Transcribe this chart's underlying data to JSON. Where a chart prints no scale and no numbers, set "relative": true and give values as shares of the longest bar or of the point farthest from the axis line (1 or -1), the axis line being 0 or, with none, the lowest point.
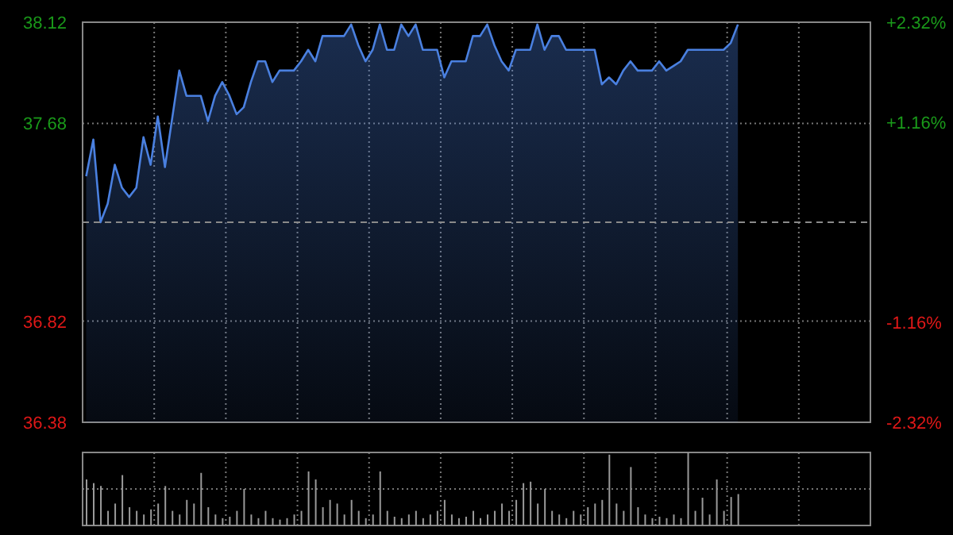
{
  "chart_data": [
    {
      "type": "area",
      "categories": [
        null,
        null,
        null,
        null,
        null,
        null,
        null,
        null,
        null,
        null,
        null,
        null,
        null,
        null,
        null,
        null,
        null,
        null,
        null,
        null,
        null,
        null,
        null,
        null,
        null,
        null,
        null,
        null,
        null,
        null,
        null,
        null,
        null,
        null,
        null,
        null,
        null,
        null,
        null,
        null,
        null,
        null,
        null,
        null,
        null,
        null,
        null,
        null,
        null,
        null,
        null,
        null,
        null,
        null,
        null,
        null,
        null,
        null,
        null,
        null,
        null,
        null,
        null,
        null,
        null,
        null,
        null,
        null,
        null,
        null,
        null,
        null,
        null,
        null,
        null,
        null,
        null,
        null,
        null,
        null,
        null,
        null,
        null,
        null,
        null,
        null,
        null,
        null,
        null,
        null,
        null,
        null,
        null,
        null,
        null,
        null,
        null,
        null,
        null,
        null,
        null,
        null,
        null,
        null,
        null,
        null,
        null,
        null,
        null,
        null
      ],
      "series": [
        {
          "color": "#4a80e0",
          "values": [
            37.45,
            37.61,
            37.25,
            37.33,
            37.5,
            37.4,
            37.36,
            37.4,
            37.62,
            37.5,
            37.71,
            37.49,
            37.7,
            37.91,
            37.8,
            37.8,
            37.8,
            37.69,
            37.8,
            37.86,
            37.8,
            37.72,
            37.75,
            37.86,
            37.95,
            37.95,
            37.86,
            37.91,
            37.91,
            37.91,
            37.95,
            38.0,
            37.95,
            38.06,
            38.06,
            38.06,
            38.06,
            38.11,
            38.02,
            37.95,
            38.0,
            38.11,
            38.0,
            38.0,
            38.11,
            38.06,
            38.11,
            38.0,
            38.0,
            38.0,
            37.88,
            37.95,
            37.95,
            37.95,
            38.06,
            38.06,
            38.11,
            38.02,
            37.95,
            37.91,
            38.0,
            38.0,
            38.0,
            38.11,
            38.0,
            38.06,
            38.06,
            38.0,
            38.0,
            38.0,
            38.0,
            38.0,
            37.85,
            37.88,
            37.85,
            37.91,
            37.95,
            37.91,
            37.91,
            37.91,
            37.95,
            37.91,
            37.93,
            37.95,
            38.0,
            38.0,
            38.0,
            38.0,
            38.0,
            38.0,
            38.03,
            38.11,
            null,
            null,
            null,
            null,
            null,
            null,
            null,
            null,
            null,
            null,
            null,
            null,
            null,
            null,
            null,
            null,
            null,
            null
          ]
        }
      ],
      "ylim": [
        36.38,
        38.12
      ],
      "yticks": [
        36.38,
        36.82,
        37.68,
        38.12
      ],
      "y2lim": [
        -2.32,
        2.32
      ],
      "y2ticks": [
        {
          "value": -2.32,
          "label": "-2.32%"
        },
        {
          "value": -1.16,
          "label": "-1.16%"
        },
        {
          "value": 1.16,
          "label": "+1.16%"
        },
        {
          "value": 2.32,
          "label": "+2.32%"
        }
      ],
      "ref_lines": [
        {
          "axis": "y",
          "value": 37.25,
          "line_style": "dashed",
          "color": "#8a8a8a"
        }
      ],
      "grid": true,
      "tick_labels": "y",
      "legend": false
    },
    {
      "type": "bar",
      "relative": true,
      "grid": true,
      "tick_labels": false,
      "legend": false,
      "categories": [
        null,
        null,
        null,
        null,
        null,
        null,
        null,
        null,
        null,
        null,
        null,
        null,
        null,
        null,
        null,
        null,
        null,
        null,
        null,
        null,
        null,
        null,
        null,
        null,
        null,
        null,
        null,
        null,
        null,
        null,
        null,
        null,
        null,
        null,
        null,
        null,
        null,
        null,
        null,
        null,
        null,
        null,
        null,
        null,
        null,
        null,
        null,
        null,
        null,
        null,
        null,
        null,
        null,
        null,
        null,
        null,
        null,
        null,
        null,
        null,
        null,
        null,
        null,
        null,
        null,
        null,
        null,
        null,
        null,
        null,
        null,
        null,
        null,
        null,
        null,
        null,
        null,
        null,
        null,
        null,
        null,
        null,
        null,
        null,
        null,
        null,
        null,
        null,
        null,
        null,
        null,
        null,
        null,
        null,
        null,
        null,
        null,
        null,
        null,
        null,
        null,
        null,
        null,
        null,
        null,
        null,
        null,
        null,
        null,
        null
      ],
      "series": [
        {
          "color": "#9a9a9a",
          "values": [
            0.63,
            0.58,
            0.54,
            0.2,
            0.3,
            0.69,
            0.25,
            0.2,
            0.15,
            0.22,
            0.3,
            0.54,
            0.2,
            0.15,
            0.35,
            0.3,
            0.72,
            0.25,
            0.15,
            0.1,
            0.12,
            0.2,
            0.5,
            0.15,
            0.1,
            0.2,
            0.1,
            0.08,
            0.1,
            0.15,
            0.2,
            0.74,
            0.63,
            0.25,
            0.35,
            0.3,
            0.15,
            0.35,
            0.2,
            0.1,
            0.15,
            0.74,
            0.2,
            0.12,
            0.1,
            0.15,
            0.2,
            0.1,
            0.15,
            0.2,
            0.35,
            0.15,
            0.1,
            0.12,
            0.2,
            0.1,
            0.15,
            0.2,
            0.3,
            0.2,
            0.35,
            0.58,
            0.6,
            0.3,
            0.5,
            0.2,
            0.15,
            0.1,
            0.2,
            0.15,
            0.25,
            0.3,
            0.35,
            0.97,
            0.3,
            0.2,
            0.8,
            0.25,
            0.15,
            0.1,
            0.12,
            0.1,
            0.15,
            0.1,
            1,
            0.2,
            0.38,
            0.15,
            0.63,
            0.2,
            0.39,
            0.43,
            null,
            null,
            null,
            null,
            null,
            null,
            null,
            null,
            null,
            null,
            null,
            null,
            null,
            null,
            null,
            null,
            null,
            null
          ]
        }
      ]
    }
  ]
}
